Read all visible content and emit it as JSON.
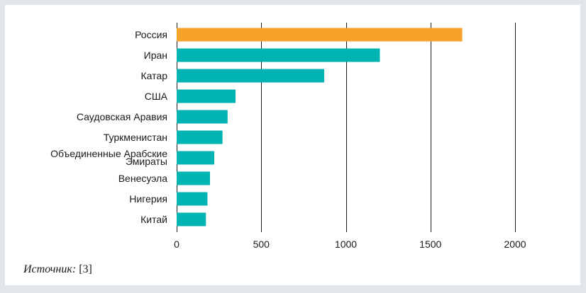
{
  "chart_data": {
    "type": "bar",
    "orientation": "horizontal",
    "categories": [
      "Россия",
      "Иран",
      "Катар",
      "США",
      "Саудовская Аравия",
      "Туркменистан",
      "Объединенные Арабские Эмираты",
      "Венесуэла",
      "Нигерия",
      "Китай"
    ],
    "values": [
      1688,
      1201,
      872,
      348,
      301,
      271,
      222,
      197,
      182,
      173
    ],
    "highlight_index": 0,
    "colors": {
      "highlight": "#f7a22a",
      "default": "#00b3b3",
      "gridline": "#1a1a1a"
    },
    "xlim": [
      0,
      2000
    ],
    "xticks": [
      0,
      500,
      1000,
      1500,
      2000
    ],
    "title": "",
    "xlabel": "",
    "ylabel": "",
    "grid": true
  },
  "source": {
    "prefix": "Источник:",
    "ref": "[3]"
  }
}
